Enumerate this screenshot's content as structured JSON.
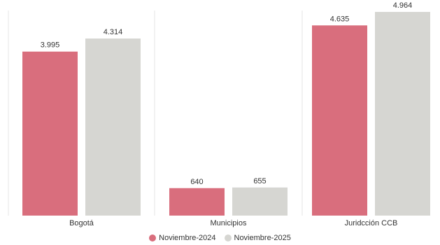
{
  "chart_data": {
    "type": "bar",
    "categories": [
      "Bogotá",
      "Municipios",
      "Juridcción CCB"
    ],
    "series": [
      {
        "name": "Noviembre-2024",
        "values": [
          3995,
          640,
          4635
        ],
        "labels": [
          "3.995",
          "640",
          "4.635"
        ],
        "color": "#d96e7d"
      },
      {
        "name": "Noviembre-2025",
        "values": [
          4314,
          655,
          4964
        ],
        "labels": [
          "4.314",
          "655",
          "4.964"
        ],
        "color": "#d6d6d2"
      }
    ],
    "independent_scales": true,
    "grid": false,
    "legend_position": "bottom-center"
  }
}
